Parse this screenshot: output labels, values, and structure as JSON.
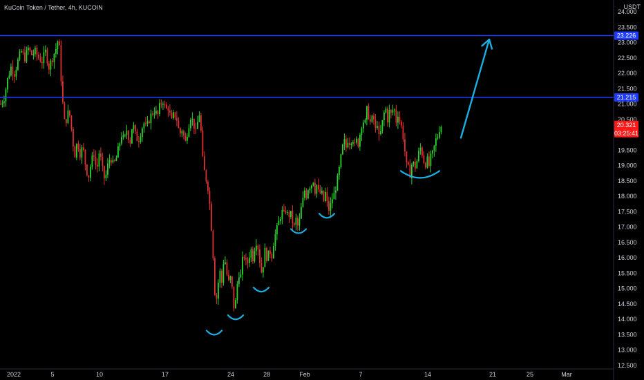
{
  "header": {
    "title": "KuCoin Token / Tether, 4h, KUCOIN"
  },
  "colors": {
    "background": "#000000",
    "up": "#26d62b",
    "down": "#e0312e",
    "level_line": "#1e3cff",
    "annotation": "#1ab0e6",
    "price_badge": "#ff1a1a"
  },
  "chart_data": {
    "type": "candlestick",
    "title": "KuCoin Token / Tether, 4h, KUCOIN",
    "currency": "USDT",
    "ylim": [
      12.5,
      24.0
    ],
    "y_ticks": [
      "12.500",
      "13.000",
      "13.500",
      "14.000",
      "14.500",
      "15.000",
      "15.500",
      "16.000",
      "16.500",
      "17.000",
      "17.500",
      "18.000",
      "18.500",
      "19.000",
      "19.500",
      "20.000",
      "20.500",
      "21.000",
      "21.500",
      "22.000",
      "22.500",
      "23.000",
      "23.500",
      "24.000"
    ],
    "x_ticks": [
      "2022",
      "5",
      "10",
      "17",
      "24",
      "28",
      "Feb",
      "7",
      "14",
      "21",
      "25",
      "Mar"
    ],
    "horizontal_levels": [
      {
        "label": "23.226",
        "value": 23.226
      },
      {
        "label": "21.215",
        "value": 21.215
      }
    ],
    "last_price": {
      "label": "20.321",
      "value": 20.321,
      "countdown": "03:25:41"
    },
    "close_path": [
      [
        0,
        21.0
      ],
      [
        5,
        21.2
      ],
      [
        10,
        21.8
      ],
      [
        15,
        22.2
      ],
      [
        20,
        22.0
      ],
      [
        25,
        22.4
      ],
      [
        30,
        22.7
      ],
      [
        35,
        22.5
      ],
      [
        40,
        22.8
      ],
      [
        45,
        22.6
      ],
      [
        50,
        22.7
      ],
      [
        55,
        22.5
      ],
      [
        60,
        22.4
      ],
      [
        65,
        22.7
      ],
      [
        70,
        22.2
      ],
      [
        75,
        22.5
      ],
      [
        80,
        22.8
      ],
      [
        84,
        23.2
      ],
      [
        87,
        22.0
      ],
      [
        90,
        21.0
      ],
      [
        93,
        20.3
      ],
      [
        96,
        20.6
      ],
      [
        99,
        20.8
      ],
      [
        103,
        20.1
      ],
      [
        107,
        19.3
      ],
      [
        111,
        19.8
      ],
      [
        115,
        19.4
      ],
      [
        119,
        19.6
      ],
      [
        123,
        19.0
      ],
      [
        127,
        18.6
      ],
      [
        131,
        19.1
      ],
      [
        135,
        19.4
      ],
      [
        139,
        18.8
      ],
      [
        143,
        19.5
      ],
      [
        147,
        18.9
      ],
      [
        151,
        18.5
      ],
      [
        155,
        19.0
      ],
      [
        159,
        19.3
      ],
      [
        163,
        19.0
      ],
      [
        167,
        19.2
      ],
      [
        171,
        19.6
      ],
      [
        175,
        20.0
      ],
      [
        179,
        19.8
      ],
      [
        183,
        20.2
      ],
      [
        187,
        19.7
      ],
      [
        191,
        20.4
      ],
      [
        195,
        20.0
      ],
      [
        199,
        19.8
      ],
      [
        203,
        20.1
      ],
      [
        207,
        20.4
      ],
      [
        211,
        20.2
      ],
      [
        215,
        20.5
      ],
      [
        219,
        20.7
      ],
      [
        223,
        20.8
      ],
      [
        227,
        20.6
      ],
      [
        231,
        21.0
      ],
      [
        235,
        21.1
      ],
      [
        239,
        20.8
      ],
      [
        243,
        20.9
      ],
      [
        247,
        20.4
      ],
      [
        251,
        20.7
      ],
      [
        255,
        20.5
      ],
      [
        259,
        20.0
      ],
      [
        263,
        20.2
      ],
      [
        267,
        19.7
      ],
      [
        271,
        20.2
      ],
      [
        275,
        20.6
      ],
      [
        279,
        20.4
      ],
      [
        283,
        20.0
      ],
      [
        287,
        20.8
      ],
      [
        290,
        20.1
      ],
      [
        293,
        19.0
      ],
      [
        297,
        18.6
      ],
      [
        301,
        18.2
      ],
      [
        305,
        17.0
      ],
      [
        308,
        15.9
      ],
      [
        311,
        14.4
      ],
      [
        314,
        15.0
      ],
      [
        317,
        15.6
      ],
      [
        320,
        15.2
      ],
      [
        323,
        16.0
      ],
      [
        326,
        15.8
      ],
      [
        329,
        15.1
      ],
      [
        332,
        15.4
      ],
      [
        335,
        15.0
      ],
      [
        338,
        14.3
      ],
      [
        341,
        14.7
      ],
      [
        344,
        15.6
      ],
      [
        347,
        15.3
      ],
      [
        350,
        15.9
      ],
      [
        353,
        16.1
      ],
      [
        356,
        15.7
      ],
      [
        359,
        16.0
      ],
      [
        362,
        16.3
      ],
      [
        365,
        16.0
      ],
      [
        368,
        16.4
      ],
      [
        371,
        16.6
      ],
      [
        374,
        16.1
      ],
      [
        377,
        15.5
      ],
      [
        380,
        15.8
      ],
      [
        383,
        16.3
      ],
      [
        386,
        15.9
      ],
      [
        389,
        16.3
      ],
      [
        392,
        16.0
      ],
      [
        395,
        16.5
      ],
      [
        398,
        16.8
      ],
      [
        401,
        17.0
      ],
      [
        404,
        17.3
      ],
      [
        407,
        17.5
      ],
      [
        410,
        17.4
      ],
      [
        413,
        17.6
      ],
      [
        416,
        17.3
      ],
      [
        419,
        17.5
      ],
      [
        422,
        17.2
      ],
      [
        425,
        17.0
      ],
      [
        428,
        17.3
      ],
      [
        431,
        16.9
      ],
      [
        434,
        17.5
      ],
      [
        437,
        17.8
      ],
      [
        440,
        18.2
      ],
      [
        443,
        18.0
      ],
      [
        446,
        18.4
      ],
      [
        449,
        18.3
      ],
      [
        452,
        18.6
      ],
      [
        455,
        18.2
      ],
      [
        458,
        18.4
      ],
      [
        461,
        18.0
      ],
      [
        464,
        18.2
      ],
      [
        467,
        17.8
      ],
      [
        470,
        18.1
      ],
      [
        473,
        17.7
      ],
      [
        476,
        17.5
      ],
      [
        479,
        17.9
      ],
      [
        482,
        18.0
      ],
      [
        485,
        18.3
      ],
      [
        488,
        18.6
      ],
      [
        491,
        19.0
      ],
      [
        494,
        19.5
      ],
      [
        497,
        19.8
      ],
      [
        500,
        19.6
      ],
      [
        503,
        19.9
      ],
      [
        506,
        19.7
      ],
      [
        509,
        20.0
      ],
      [
        512,
        19.6
      ],
      [
        515,
        19.8
      ],
      [
        518,
        19.7
      ],
      [
        521,
        20.2
      ],
      [
        524,
        20.5
      ],
      [
        527,
        20.3
      ],
      [
        530,
        20.8
      ],
      [
        533,
        20.6
      ],
      [
        536,
        20.3
      ],
      [
        539,
        20.7
      ],
      [
        542,
        20.1
      ],
      [
        545,
        20.4
      ],
      [
        548,
        19.8
      ],
      [
        551,
        20.2
      ],
      [
        554,
        20.6
      ],
      [
        557,
        20.9
      ],
      [
        560,
        20.5
      ],
      [
        563,
        20.8
      ],
      [
        566,
        20.6
      ],
      [
        569,
        21.0
      ],
      [
        572,
        20.4
      ],
      [
        575,
        20.7
      ],
      [
        578,
        20.4
      ],
      [
        581,
        20.2
      ],
      [
        584,
        19.7
      ],
      [
        587,
        19.0
      ],
      [
        590,
        18.9
      ],
      [
        593,
        18.7
      ],
      [
        596,
        19.2
      ],
      [
        599,
        18.9
      ],
      [
        602,
        19.1
      ],
      [
        605,
        19.4
      ],
      [
        608,
        19.6
      ],
      [
        611,
        19.3
      ],
      [
        614,
        19.0
      ],
      [
        617,
        19.2
      ],
      [
        620,
        19.0
      ],
      [
        623,
        19.3
      ],
      [
        626,
        19.4
      ],
      [
        629,
        19.8
      ],
      [
        632,
        19.9
      ],
      [
        635,
        20.2
      ],
      [
        638,
        20.321
      ]
    ],
    "annotations": [
      {
        "type": "arc",
        "x": 310,
        "y": 13.5
      },
      {
        "type": "arc",
        "x": 341,
        "y": 14.0
      },
      {
        "type": "arc",
        "x": 378,
        "y": 14.9
      },
      {
        "type": "arc",
        "x": 432,
        "y": 16.8
      },
      {
        "type": "arc",
        "x": 473,
        "y": 17.3
      },
      {
        "type": "arc-wide",
        "x": 608,
        "y": 18.6
      },
      {
        "type": "arrow",
        "from": [
          667,
          19.9
        ],
        "to": [
          708,
          23.1
        ]
      }
    ]
  }
}
